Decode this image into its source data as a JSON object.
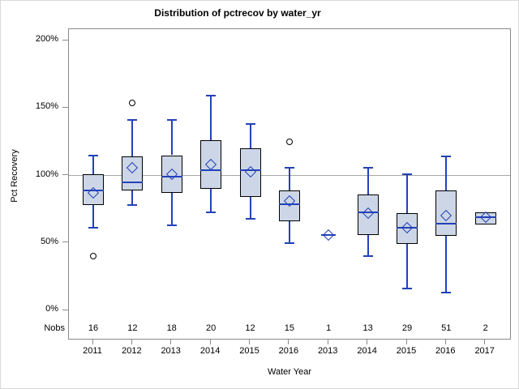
{
  "title": "Distribution of pctrecov by water_yr",
  "y_axis": {
    "label": "Pct Recovery",
    "ticks": [
      {
        "value": 0,
        "label": "0%"
      },
      {
        "value": 50,
        "label": "50%"
      },
      {
        "value": 100,
        "label": "100%"
      },
      {
        "value": 150,
        "label": "150%"
      },
      {
        "value": 200,
        "label": "200%"
      }
    ]
  },
  "x_axis": {
    "label": "Water Year",
    "categories": [
      "2011",
      "2012",
      "2013",
      "2014",
      "2015",
      "2016",
      "2013",
      "2014",
      "2015",
      "2016",
      "2017"
    ]
  },
  "nobs_row": {
    "label": "Nobs",
    "values": [
      16,
      12,
      18,
      20,
      12,
      15,
      1,
      13,
      29,
      51,
      2
    ]
  },
  "chart_data": {
    "type": "box",
    "title": "Distribution of pctrecov by water_yr",
    "xlabel": "Water Year",
    "ylabel": "Pct Recovery",
    "ylim": [
      -22,
      209
    ],
    "y_tick_values": [
      0,
      50,
      100,
      150,
      200
    ],
    "y_tick_format": "percent",
    "refline_y": 100,
    "grid": false,
    "legend": false,
    "categories": [
      "2011",
      "2012",
      "2013",
      "2014",
      "2015",
      "2016",
      "2013",
      "2014",
      "2015",
      "2016",
      "2017"
    ],
    "nobs": [
      16,
      12,
      18,
      20,
      12,
      15,
      1,
      13,
      29,
      51,
      2
    ],
    "series": [
      {
        "category": "2011",
        "n": 16,
        "whisker_low": 61,
        "q1": 78,
        "median": 89,
        "mean": 87,
        "q3": 101,
        "whisker_high": 115,
        "outliers": [
          40
        ]
      },
      {
        "category": "2012",
        "n": 12,
        "whisker_low": 78,
        "q1": 89,
        "median": 95,
        "mean": 106,
        "q3": 114,
        "whisker_high": 141,
        "outliers": [
          154
        ]
      },
      {
        "category": "2013",
        "n": 18,
        "whisker_low": 63,
        "q1": 87,
        "median": 99,
        "mean": 101,
        "q3": 115,
        "whisker_high": 141,
        "outliers": []
      },
      {
        "category": "2014",
        "n": 20,
        "whisker_low": 73,
        "q1": 90,
        "median": 104,
        "mean": 108,
        "q3": 126,
        "whisker_high": 159,
        "outliers": []
      },
      {
        "category": "2015",
        "n": 12,
        "whisker_low": 68,
        "q1": 84,
        "median": 104,
        "mean": 103,
        "q3": 120,
        "whisker_high": 138,
        "outliers": []
      },
      {
        "category": "2016",
        "n": 15,
        "whisker_low": 50,
        "q1": 66,
        "median": 79,
        "mean": 81,
        "q3": 89,
        "whisker_high": 106,
        "outliers": [
          125
        ]
      },
      {
        "category": "2013",
        "n": 1,
        "whisker_low": 56,
        "q1": 56,
        "median": 56,
        "mean": 56,
        "q3": 56,
        "whisker_high": 56,
        "outliers": []
      },
      {
        "category": "2014",
        "n": 13,
        "whisker_low": 40,
        "q1": 56,
        "median": 73,
        "mean": 72,
        "q3": 86,
        "whisker_high": 106,
        "outliers": []
      },
      {
        "category": "2015",
        "n": 29,
        "whisker_low": 16,
        "q1": 49,
        "median": 61,
        "mean": 61,
        "q3": 72,
        "whisker_high": 101,
        "outliers": []
      },
      {
        "category": "2016",
        "n": 51,
        "whisker_low": 13,
        "q1": 55,
        "median": 64,
        "mean": 70,
        "q3": 89,
        "whisker_high": 114,
        "outliers": []
      },
      {
        "category": "2017",
        "n": 2,
        "whisker_low": 64,
        "q1": 64,
        "median": 69,
        "mean": 69,
        "q3": 73,
        "whisker_high": 73,
        "outliers": []
      }
    ]
  },
  "colors": {
    "box_fill": "#ccd6e6",
    "box_border": "#000000",
    "line_blue": "#2342b8",
    "refline_gray": "#a8a8a8",
    "plot_border": "#8a8a8a",
    "tick_gray": "#8a8a8a",
    "outlier_stroke": "#000000",
    "text": "#000000"
  }
}
